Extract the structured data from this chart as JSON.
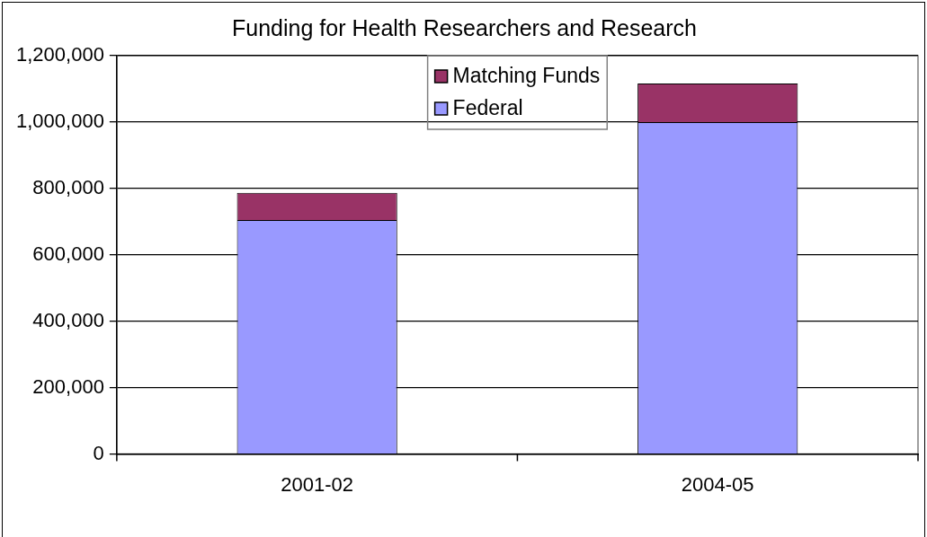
{
  "chart_data": {
    "type": "bar",
    "title": "Funding for Health Researchers and Research",
    "categories": [
      "2001-02",
      "2004-05"
    ],
    "stacked": true,
    "series": [
      {
        "name": "Federal",
        "color": "#9999ff",
        "values": [
          705000,
          1000000
        ]
      },
      {
        "name": "Matching Funds",
        "color": "#993366",
        "values": [
          82000,
          116000
        ]
      }
    ],
    "ylim": [
      0,
      1200000
    ],
    "yticks": [
      0,
      {
        "value": 200000,
        "label": "200,000"
      },
      {
        "value": 400000,
        "label": "400,000"
      },
      {
        "value": 600000,
        "label": "600,000"
      },
      {
        "value": 800000,
        "label": "800,000"
      },
      {
        "value": 1000000,
        "label": "1,000,000"
      },
      {
        "value": 1200000,
        "label": "1,200,000"
      }
    ],
    "grid": "y",
    "legend": "top"
  }
}
